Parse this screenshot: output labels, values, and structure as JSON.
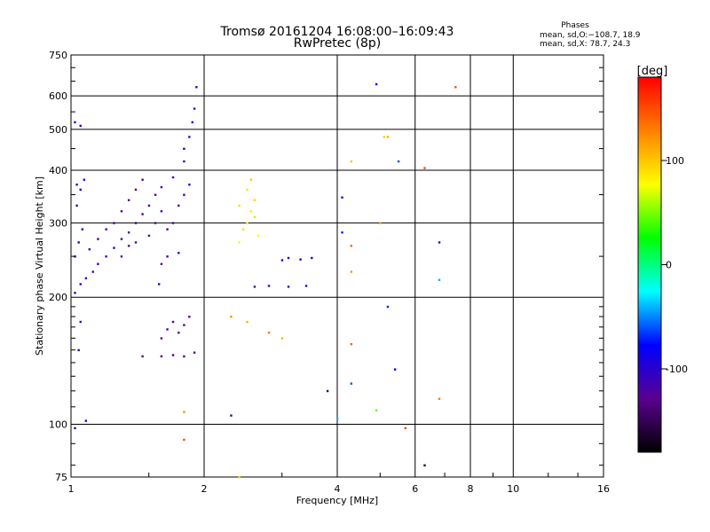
{
  "chart_data": {
    "type": "scatter",
    "title": "Tromsø 20161204 16:08:00–16:09:43",
    "subtitle": "RwPretec (8p)",
    "xlabel": "Frequency [MHz]",
    "ylabel": "Stationary phase Virtual Height [km]",
    "x_scale": "log",
    "y_scale": "log",
    "xlim": [
      1,
      16
    ],
    "ylim": [
      75,
      750
    ],
    "x_ticks": [
      1,
      2,
      4,
      6,
      8,
      10,
      16
    ],
    "y_ticks": [
      75,
      100,
      200,
      300,
      400,
      500,
      600,
      750
    ],
    "grid": true,
    "phase_note": {
      "title": "Phases",
      "line_o": "mean, sd,O:−108.7, 18.9",
      "line_x": "mean, sd,X:  78.7, 24.3"
    },
    "colorbar": {
      "label": "[deg]",
      "min": -180,
      "max": 180,
      "ticks": [
        100,
        0,
        -100
      ],
      "colors": [
        "#000000",
        "#5a0090",
        "#0000ff",
        "#00ffff",
        "#00ff00",
        "#ffff00",
        "#ff8000",
        "#ff0000"
      ]
    },
    "points": [
      [
        1.02,
        205,
        -105
      ],
      [
        1.05,
        215,
        -110
      ],
      [
        1.08,
        222,
        -100
      ],
      [
        1.12,
        230,
        -115
      ],
      [
        1.15,
        240,
        -108
      ],
      [
        1.2,
        250,
        -120
      ],
      [
        1.25,
        262,
        -112
      ],
      [
        1.3,
        275,
        -118
      ],
      [
        1.35,
        285,
        -125
      ],
      [
        1.4,
        300,
        -115
      ],
      [
        1.45,
        315,
        -130
      ],
      [
        1.5,
        330,
        -122
      ],
      [
        1.55,
        350,
        -128
      ],
      [
        1.6,
        365,
        -120
      ],
      [
        1.7,
        385,
        -115
      ],
      [
        1.8,
        420,
        -110
      ],
      [
        1.85,
        480,
        -105
      ],
      [
        1.9,
        560,
        -100
      ],
      [
        1.92,
        630,
        -110
      ],
      [
        1.02,
        250,
        -110
      ],
      [
        1.04,
        270,
        -105
      ],
      [
        1.06,
        290,
        -100
      ],
      [
        1.03,
        330,
        -108
      ],
      [
        1.05,
        360,
        -95
      ],
      [
        1.03,
        370,
        -105
      ],
      [
        1.07,
        380,
        -100
      ],
      [
        1.02,
        520,
        -100
      ],
      [
        1.05,
        510,
        -95
      ],
      [
        1.1,
        260,
        -112
      ],
      [
        1.15,
        275,
        -118
      ],
      [
        1.2,
        290,
        -125
      ],
      [
        1.25,
        300,
        -130
      ],
      [
        1.3,
        320,
        -122
      ],
      [
        1.35,
        340,
        -128
      ],
      [
        1.4,
        360,
        -135
      ],
      [
        1.45,
        380,
        -120
      ],
      [
        1.3,
        250,
        -125
      ],
      [
        1.35,
        265,
        -130
      ],
      [
        1.4,
        270,
        -120
      ],
      [
        1.5,
        280,
        -132
      ],
      [
        1.55,
        300,
        -125
      ],
      [
        1.6,
        320,
        -118
      ],
      [
        1.65,
        290,
        -128
      ],
      [
        1.7,
        300,
        -122
      ],
      [
        1.75,
        330,
        -115
      ],
      [
        1.8,
        350,
        -110
      ],
      [
        1.85,
        370,
        -108
      ],
      [
        1.8,
        450,
        -105
      ],
      [
        1.88,
        520,
        -100
      ],
      [
        1.6,
        240,
        -125
      ],
      [
        1.65,
        250,
        -118
      ],
      [
        1.58,
        215,
        -100
      ],
      [
        1.75,
        255,
        -110
      ],
      [
        1.6,
        160,
        -130
      ],
      [
        1.65,
        168,
        -125
      ],
      [
        1.7,
        175,
        -122
      ],
      [
        1.75,
        165,
        -128
      ],
      [
        1.8,
        172,
        -120
      ],
      [
        1.85,
        180,
        -118
      ],
      [
        1.6,
        145,
        -135
      ],
      [
        1.7,
        146,
        -130
      ],
      [
        1.8,
        145,
        -128
      ],
      [
        1.9,
        148,
        -125
      ],
      [
        1.05,
        175,
        -110
      ],
      [
        1.04,
        150,
        -100
      ],
      [
        1.45,
        145,
        -130
      ],
      [
        1.02,
        98,
        -100
      ],
      [
        1.08,
        102,
        -95
      ],
      [
        2.4,
        270,
        80
      ],
      [
        2.45,
        290,
        90
      ],
      [
        2.5,
        300,
        75
      ],
      [
        2.55,
        320,
        85
      ],
      [
        2.6,
        340,
        95
      ],
      [
        2.5,
        360,
        70
      ],
      [
        2.55,
        380,
        100
      ],
      [
        2.6,
        310,
        65
      ],
      [
        2.65,
        280,
        80
      ],
      [
        2.4,
        330,
        90
      ],
      [
        2.3,
        180,
        120
      ],
      [
        2.5,
        175,
        110
      ],
      [
        2.8,
        165,
        130
      ],
      [
        3.0,
        160,
        105
      ],
      [
        3.0,
        245,
        -100
      ],
      [
        3.1,
        248,
        -105
      ],
      [
        3.3,
        246,
        -95
      ],
      [
        3.5,
        248,
        -100
      ],
      [
        2.6,
        212,
        -120
      ],
      [
        2.8,
        213,
        -115
      ],
      [
        3.1,
        212,
        -110
      ],
      [
        3.4,
        213,
        -105
      ],
      [
        4.3,
        420,
        100
      ],
      [
        5.2,
        480,
        110
      ],
      [
        5.5,
        420,
        -60
      ],
      [
        4.9,
        640,
        -80
      ],
      [
        7.4,
        630,
        150
      ],
      [
        6.8,
        270,
        -110
      ],
      [
        6.8,
        220,
        -40
      ],
      [
        4.3,
        265,
        140
      ],
      [
        4.3,
        230,
        120
      ],
      [
        5.0,
        300,
        115
      ],
      [
        5.2,
        190,
        -70
      ],
      [
        4.3,
        155,
        140
      ],
      [
        4.3,
        125,
        -60
      ],
      [
        5.4,
        135,
        -80
      ],
      [
        4.9,
        108,
        45
      ],
      [
        6.8,
        115,
        130
      ],
      [
        5.7,
        98,
        150
      ],
      [
        6.3,
        80,
        -160
      ],
      [
        3.8,
        120,
        -150
      ],
      [
        4.0,
        103,
        -40
      ],
      [
        1.8,
        92,
        150
      ],
      [
        1.8,
        107,
        120
      ],
      [
        2.3,
        105,
        -140
      ],
      [
        2.4,
        75,
        95
      ],
      [
        4.1,
        345,
        -95
      ],
      [
        4.1,
        285,
        -70
      ],
      [
        5.1,
        480,
        95
      ],
      [
        6.3,
        405,
        150
      ]
    ]
  }
}
